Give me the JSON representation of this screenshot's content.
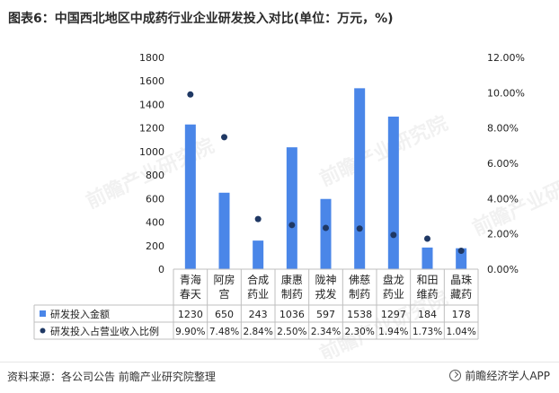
{
  "title": "图表6：中国西北地区中成药行业企业研发投入对比(单位：万元，%)",
  "source": "资料来源：各公司公告 前瞻产业研究院整理",
  "brand": "前瞻经济学人APP",
  "watermark": "前瞻产业研究院",
  "colors": {
    "bar": "#4a86e8",
    "dot": "#1f3864",
    "grid": "#d9d9d9",
    "text": "#222222"
  },
  "chart_data": {
    "type": "bar",
    "categories": [
      [
        "青海",
        "春天"
      ],
      [
        "阿房",
        "宫"
      ],
      [
        "合成",
        "药业"
      ],
      [
        "康惠",
        "制药"
      ],
      [
        "陇神",
        "戎发"
      ],
      [
        "佛慈",
        "制药"
      ],
      [
        "盘龙",
        "药业"
      ],
      [
        "和田",
        "维药"
      ],
      [
        "晶珠",
        "藏药"
      ]
    ],
    "y_left": {
      "ylim": [
        0,
        1800
      ],
      "ticks": [
        "0",
        "200",
        "400",
        "600",
        "800",
        "1000",
        "1200",
        "1400",
        "1600",
        "1800"
      ]
    },
    "y_right": {
      "ylim": [
        0,
        12
      ],
      "ticks": [
        "0.00%",
        "2.00%",
        "4.00%",
        "6.00%",
        "8.00%",
        "10.00%",
        "12.00%"
      ]
    },
    "series": [
      {
        "name": "研发投入金额",
        "kind": "bar",
        "axis": "left",
        "values": [
          1230,
          650,
          243,
          1036,
          597,
          1538,
          1297,
          184,
          178
        ],
        "labels": [
          "1230",
          "650",
          "243",
          "1036",
          "597",
          "1538",
          "1297",
          "184",
          "178"
        ]
      },
      {
        "name": "研发投入占营业收入比例",
        "kind": "scatter",
        "axis": "right",
        "values": [
          9.9,
          7.48,
          2.84,
          2.5,
          2.34,
          2.3,
          1.94,
          1.73,
          1.04
        ],
        "labels": [
          "9.90%",
          "7.48%",
          "2.84%",
          "2.50%",
          "2.34%",
          "2.30%",
          "1.94%",
          "1.73%",
          "1.04%"
        ]
      }
    ],
    "legend": "table-below"
  }
}
